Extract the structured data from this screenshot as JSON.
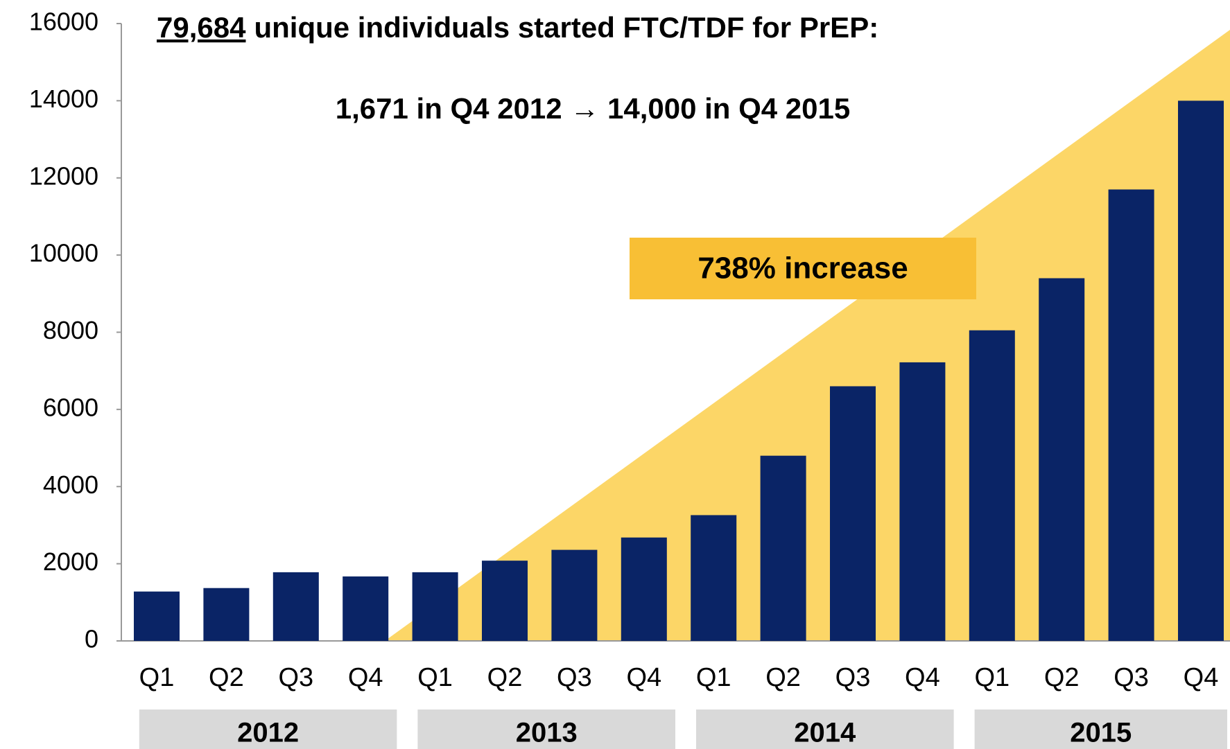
{
  "chart_data": {
    "type": "bar",
    "title_highlight": "79,684",
    "title": "unique individuals started FTC/TDF for PrEP:",
    "subtitle": "1,671 in Q4 2012 → 14,000 in Q4 2015",
    "annotation": "738% increase",
    "categories": [
      "Q1",
      "Q2",
      "Q3",
      "Q4",
      "Q1",
      "Q2",
      "Q3",
      "Q4",
      "Q1",
      "Q2",
      "Q3",
      "Q4",
      "Q1",
      "Q2",
      "Q3",
      "Q4"
    ],
    "groups": [
      "2012",
      "2013",
      "2014",
      "2015"
    ],
    "values": [
      1280,
      1370,
      1780,
      1671,
      1780,
      2080,
      2360,
      2680,
      3260,
      4800,
      6600,
      7220,
      8050,
      9400,
      11700,
      14000
    ],
    "color": "#0a2466",
    "ylim": [
      0,
      16000
    ],
    "yticks": [
      0,
      2000,
      4000,
      6000,
      8000,
      10000,
      12000,
      14000,
      16000
    ],
    "grid": false
  }
}
